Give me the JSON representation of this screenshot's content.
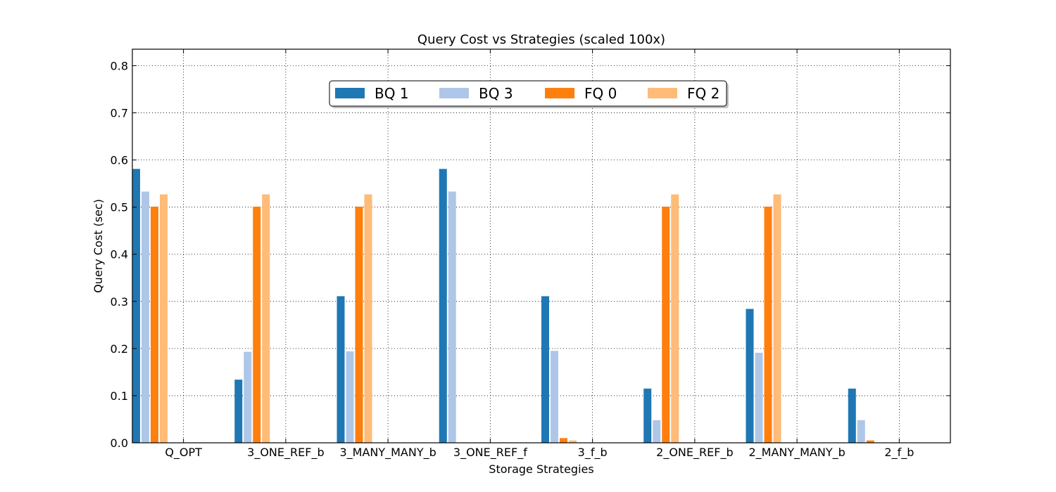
{
  "chart_data": {
    "type": "bar",
    "title": "Query Cost vs Strategies (scaled 100x)",
    "xlabel": "Storage Strategies",
    "ylabel": "Query Cost (sec)",
    "ylim": [
      0,
      0.835
    ],
    "yticks": [
      "0.0",
      "0.1",
      "0.2",
      "0.3",
      "0.4",
      "0.5",
      "0.6",
      "0.7",
      "0.8"
    ],
    "grid": true,
    "legend_position": "top-center",
    "categories": [
      "Q_OPT",
      "3_ONE_REF_b",
      "3_MANY_MANY_b",
      "3_ONE_REF_f",
      "3_f_b",
      "2_ONE_REF_b",
      "2_MANY_MANY_b",
      "2_f_b"
    ],
    "series": [
      {
        "name": "BQ 1",
        "color": "#1f77b4",
        "values": [
          0.581,
          0.134,
          0.311,
          0.581,
          0.311,
          0.115,
          0.284,
          0.115
        ]
      },
      {
        "name": "BQ 3",
        "color": "#aec7e8",
        "values": [
          0.533,
          0.193,
          0.194,
          0.533,
          0.195,
          0.048,
          0.191,
          0.048
        ]
      },
      {
        "name": "FQ 0",
        "color": "#ff7f0e",
        "values": [
          0.501,
          0.501,
          0.501,
          0.0,
          0.01,
          0.501,
          0.501,
          0.005
        ]
      },
      {
        "name": "FQ 2",
        "color": "#ffbb78",
        "values": [
          0.527,
          0.527,
          0.527,
          0.0,
          0.005,
          0.527,
          0.527,
          0.0
        ]
      }
    ]
  }
}
